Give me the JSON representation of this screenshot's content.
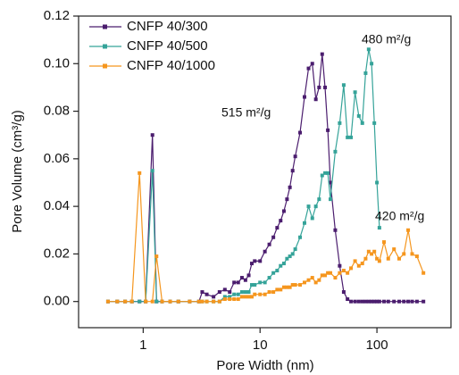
{
  "chart_data": {
    "type": "line",
    "xlabel": "Pore Width (nm)",
    "ylabel": "Pore Volume (cm³/g)",
    "x": [
      0.5,
      0.6,
      0.7,
      0.8,
      0.93,
      1.05,
      1.2,
      1.3,
      1.45,
      1.7,
      2.0,
      2.5,
      3.0,
      3.2,
      3.5,
      4.0,
      4.5,
      5.0,
      5.5,
      6.0,
      6.5,
      7.0,
      7.5,
      8.0,
      8.5,
      9.0,
      10,
      11,
      12,
      13,
      14,
      15,
      16,
      17,
      18,
      19,
      20,
      22,
      24,
      26,
      28,
      30,
      32,
      34,
      36,
      38,
      40,
      44,
      48,
      52,
      56,
      60,
      65,
      70,
      75,
      80,
      85,
      90,
      95,
      100,
      105,
      115,
      125,
      140,
      155,
      170,
      185,
      200,
      220,
      250
    ],
    "series": [
      {
        "name": "CNFP 40/300",
        "color": "#4b1d6e",
        "values": [
          0,
          0,
          0,
          0,
          0,
          0,
          0.07,
          0,
          0,
          0,
          0,
          0,
          0,
          0.004,
          0.003,
          0.002,
          0.004,
          0.005,
          0.004,
          0.008,
          0.008,
          0.01,
          0.009,
          0.011,
          0.016,
          0.017,
          0.017,
          0.021,
          0.024,
          0.027,
          0.031,
          0.034,
          0.038,
          0.043,
          0.048,
          0.055,
          0.061,
          0.071,
          0.086,
          0.098,
          0.1,
          0.085,
          0.09,
          0.104,
          0.09,
          0.072,
          0.05,
          0.03,
          0.015,
          0.004,
          0.001,
          0,
          0,
          0,
          0,
          0,
          0,
          0,
          0,
          0,
          0,
          0,
          0,
          0,
          0,
          0,
          0,
          0,
          0,
          0
        ]
      },
      {
        "name": "CNFP 40/500",
        "color": "#35a399",
        "values": [
          0,
          0,
          0,
          0,
          0,
          0,
          0.055,
          0,
          0,
          0,
          0,
          0,
          0,
          0,
          0,
          0,
          0,
          0.002,
          0.002,
          0.003,
          0.003,
          0.004,
          0.004,
          0.004,
          0.007,
          0.007,
          0.008,
          0.008,
          0.01,
          0.012,
          0.013,
          0.015,
          0.016,
          0.018,
          0.019,
          0.02,
          0.022,
          0.027,
          0.033,
          0.04,
          0.035,
          0.04,
          0.043,
          0.053,
          0.054,
          0.054,
          0.043,
          0.063,
          0.075,
          0.091,
          0.069,
          0.069,
          0.088,
          0.078,
          0.075,
          0.096,
          0.106,
          0.1,
          0.075,
          0.05,
          0.031,
          null,
          null,
          null,
          null,
          null,
          null,
          null,
          null,
          null
        ]
      },
      {
        "name": "CNFP 40/1000",
        "color": "#f5961e",
        "values": [
          0,
          0,
          0,
          0,
          0.054,
          0,
          0,
          0.019,
          0,
          0,
          0,
          0,
          0,
          0,
          0,
          0,
          0,
          0.001,
          0.001,
          0.001,
          0.001,
          0.002,
          0.002,
          0.002,
          0.002,
          0.003,
          0.003,
          0.003,
          0.004,
          0.004,
          0.005,
          0.005,
          0.006,
          0.006,
          0.006,
          0.007,
          0.007,
          0.007,
          0.008,
          0.009,
          0.01,
          0.008,
          0.009,
          0.011,
          0.011,
          0.012,
          0.012,
          0.01,
          0.012,
          0.013,
          0.012,
          0.014,
          0.017,
          0.015,
          0.016,
          0.018,
          0.021,
          0.02,
          0.021,
          0.018,
          0.017,
          0.025,
          0.018,
          0.022,
          0.018,
          0.02,
          0.03,
          0.02,
          0.019,
          0.012
        ]
      }
    ],
    "xlim": [
      0.28,
      430
    ],
    "xscale": "log",
    "xticks": [
      1,
      10,
      100
    ],
    "ylim": [
      -0.011,
      0.12
    ],
    "yticks": [
      {
        "value": 0,
        "label": "0.00"
      },
      0.02,
      0.04,
      0.06,
      0.08,
      {
        "value": 0.1,
        "label": "0.10"
      },
      0.12
    ],
    "legend": "upper left",
    "annotations": [
      {
        "text": "515 m²/g"
      },
      {
        "text": "480 m²/g"
      },
      {
        "text": "420 m²/g"
      }
    ]
  }
}
